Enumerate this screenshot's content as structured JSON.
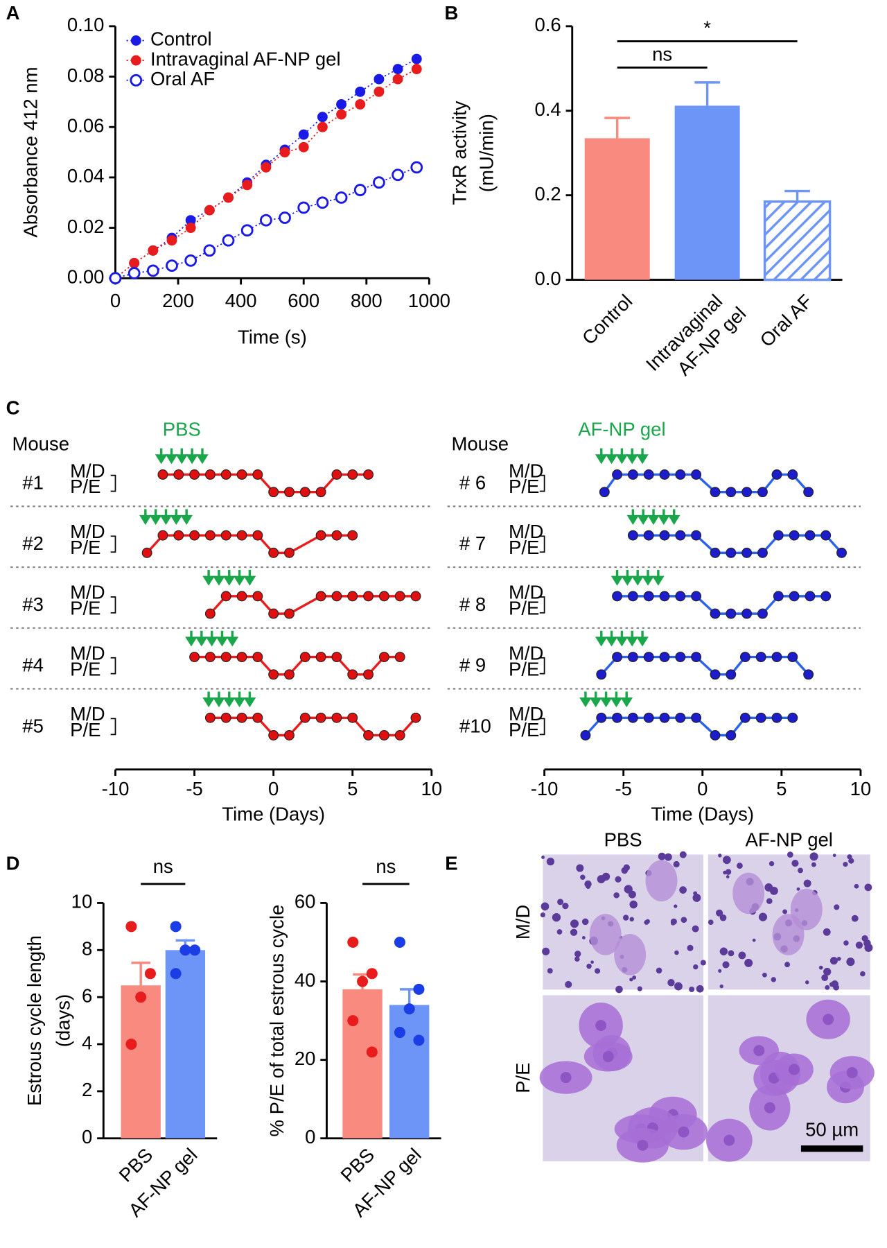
{
  "panel_labels": [
    "A",
    "B",
    "C",
    "D",
    "E"
  ],
  "chart_data": [
    {
      "type": "scatter",
      "x_label": "Time (s)",
      "y_label": "Absorbance 412 nm",
      "x": [
        0,
        60,
        120,
        180,
        240,
        300,
        360,
        420,
        480,
        540,
        600,
        660,
        720,
        780,
        840,
        900,
        960
      ],
      "series": [
        {
          "name": "Control",
          "color": "#1a1ae6",
          "marker": "filled",
          "values": [
            0,
            0.006,
            0.011,
            0.016,
            0.023,
            0.027,
            0.032,
            0.038,
            0.045,
            0.051,
            0.057,
            0.064,
            0.069,
            0.074,
            0.079,
            0.083,
            0.087
          ]
        },
        {
          "name": "Intravaginal AF-NP gel",
          "color": "#e81c1c",
          "marker": "filled",
          "values": [
            0,
            0.006,
            0.011,
            0.015,
            0.02,
            0.027,
            0.032,
            0.037,
            0.044,
            0.05,
            0.052,
            0.06,
            0.065,
            0.069,
            0.074,
            0.079,
            0.083
          ]
        },
        {
          "name": "Oral AF",
          "color": "#1a1ae6",
          "marker": "open",
          "values": [
            0,
            0.002,
            0.003,
            0.005,
            0.007,
            0.011,
            0.015,
            0.019,
            0.023,
            0.024,
            0.028,
            0.03,
            0.032,
            0.035,
            0.038,
            0.041,
            0.044
          ]
        }
      ],
      "xlim": [
        0,
        1000
      ],
      "xticks": [
        0,
        200,
        400,
        600,
        800,
        1000
      ],
      "ylim": [
        0,
        0.1
      ],
      "yticks": [
        {
          "value": 0,
          "label": "0.00"
        },
        {
          "value": 0.02,
          "label": "0.02"
        },
        {
          "value": 0.04,
          "label": "0.04"
        },
        {
          "value": 0.06,
          "label": "0.06"
        },
        {
          "value": 0.08,
          "label": "0.08"
        },
        {
          "value": 0.1,
          "label": "0.10"
        }
      ],
      "legend": "upper left",
      "line_style": "dotted"
    },
    {
      "type": "bar",
      "y_label": [
        "TrxR activity",
        "(mU/min)"
      ],
      "categories": [
        [
          "Control"
        ],
        [
          "Intravaginal",
          "AF-NP gel"
        ],
        [
          "Oral AF"
        ]
      ],
      "values": [
        0.335,
        0.412,
        0.185
      ],
      "errors": [
        0.048,
        0.055,
        0.025
      ],
      "colors": [
        "#f98a80",
        "#6d95f7",
        "#6d95f7"
      ],
      "hatch": [
        false,
        false,
        true
      ],
      "ylim": [
        0,
        0.6
      ],
      "yticks": [
        {
          "value": 0,
          "label": "0.0"
        },
        {
          "value": 0.2,
          "label": "0.2"
        },
        {
          "value": 0.4,
          "label": "0.4"
        },
        {
          "value": 0.6,
          "label": "0.6"
        }
      ],
      "significance": [
        {
          "label": "ns",
          "span": [
            0,
            1
          ]
        },
        {
          "label": "*",
          "span": [
            0,
            2
          ]
        }
      ]
    },
    {
      "type": "line",
      "row_header": "Mouse",
      "treatment_label": "PBS",
      "treatment_color": "#1aa64b",
      "line_color": "#e81c1c",
      "marker_color": "#e01010",
      "state_ticks": [
        {
          "value": 1,
          "label": "M/D"
        },
        {
          "value": 0,
          "label": "P/E"
        }
      ],
      "rows": [
        {
          "name": "#1",
          "x": [
            -7,
            -6,
            -5,
            -4,
            -3,
            -2,
            -1,
            0,
            1,
            2,
            3,
            4,
            5,
            6
          ],
          "values": [
            1,
            1,
            1,
            1,
            1,
            1,
            1,
            0,
            0,
            0,
            0,
            1,
            1,
            1
          ],
          "treatment": [
            -7.1,
            -6.45,
            -5.8,
            -5.15,
            -4.5
          ]
        },
        {
          "name": "#2",
          "x": [
            -8,
            -7,
            -6,
            -5,
            -4,
            -3,
            -2,
            -1,
            0,
            1,
            3,
            4,
            5
          ],
          "values": [
            0,
            1,
            1,
            1,
            1,
            1,
            1,
            1,
            0,
            0,
            1,
            1,
            1
          ],
          "treatment": [
            -8.1,
            -7.45,
            -6.8,
            -6.15,
            -5.5
          ]
        },
        {
          "name": "#3",
          "x": [
            -4,
            -3,
            -2,
            -1,
            0,
            1,
            3,
            4,
            5,
            6,
            7,
            8,
            9
          ],
          "values": [
            0,
            1,
            1,
            1,
            0,
            0,
            1,
            1,
            1,
            1,
            1,
            1,
            1
          ],
          "treatment": [
            -4.1,
            -3.45,
            -2.8,
            -2.15,
            -1.5
          ]
        },
        {
          "name": "#4",
          "x": [
            -5,
            -4,
            -3,
            -2,
            -1,
            0,
            1,
            2,
            3,
            4,
            5,
            6,
            7,
            8
          ],
          "values": [
            1,
            1,
            1,
            1,
            1,
            0,
            0,
            1,
            1,
            1,
            0,
            0,
            1,
            1
          ],
          "treatment": [
            -5.2,
            -4.55,
            -3.9,
            -3.25,
            -2.6
          ]
        },
        {
          "name": "#5",
          "x": [
            -4,
            -3,
            -2,
            -1,
            0,
            1,
            2,
            3,
            4,
            5,
            6,
            7,
            8,
            9
          ],
          "values": [
            1,
            1,
            1,
            1,
            0,
            0,
            1,
            1,
            1,
            1,
            0,
            0,
            0,
            1
          ],
          "treatment": [
            -4.1,
            -3.45,
            -2.8,
            -2.15,
            -1.5
          ]
        }
      ],
      "xlim": [
        -10,
        10
      ],
      "xticks": [
        -10,
        -5,
        0,
        5,
        10
      ],
      "x_label": "Time (Days)"
    },
    {
      "type": "line",
      "row_header": "Mouse",
      "treatment_label": "AF-NP gel",
      "treatment_color": "#1aa64b",
      "line_color": "#2c62e8",
      "marker_color": "#1c1ccc",
      "state_ticks": [
        {
          "value": 1,
          "label": "M/D"
        },
        {
          "value": 0,
          "label": "P/E"
        }
      ],
      "rows": [
        {
          "name": "# 6",
          "x": [
            -6.2,
            -5.4,
            -4.4,
            -3.4,
            -2.4,
            -1.4,
            -0.4,
            0.8,
            1.8,
            2.8,
            3.8,
            4.7,
            5.7,
            6.7
          ],
          "values": [
            0,
            1,
            1,
            1,
            1,
            1,
            1,
            0,
            0,
            0,
            0,
            1,
            1,
            0
          ],
          "treatment": [
            -6.4,
            -5.75,
            -5.1,
            -4.45,
            -3.8
          ]
        },
        {
          "name": "# 7",
          "x": [
            -4.4,
            -3.4,
            -2.4,
            -1.4,
            -0.4,
            0.8,
            1.8,
            2.8,
            3.8,
            4.8,
            5.8,
            6.8,
            7.8,
            8.8
          ],
          "values": [
            1,
            1,
            1,
            1,
            1,
            0,
            0,
            0,
            0,
            1,
            1,
            1,
            1,
            0
          ],
          "treatment": [
            -4.4,
            -3.75,
            -3.1,
            -2.45,
            -1.8
          ]
        },
        {
          "name": "# 8",
          "x": [
            -5.4,
            -4.4,
            -3.4,
            -2.4,
            -1.4,
            -0.4,
            0.8,
            1.8,
            2.8,
            3.8,
            4.8,
            5.8,
            6.8,
            7.8
          ],
          "values": [
            1,
            1,
            1,
            1,
            1,
            1,
            0,
            0,
            0,
            0,
            1,
            1,
            1,
            1
          ],
          "treatment": [
            -5.4,
            -4.75,
            -4.1,
            -3.45,
            -2.8
          ]
        },
        {
          "name": "# 9",
          "x": [
            -6.4,
            -5.4,
            -4.4,
            -3.4,
            -2.4,
            -1.4,
            -0.4,
            0.8,
            1.8,
            2.7,
            3.7,
            4.7,
            5.7,
            6.7
          ],
          "values": [
            0,
            1,
            1,
            1,
            1,
            1,
            1,
            0,
            0,
            1,
            1,
            1,
            1,
            0
          ],
          "treatment": [
            -6.4,
            -5.75,
            -5.1,
            -4.45,
            -3.8
          ]
        },
        {
          "name": "#10",
          "x": [
            -7.4,
            -6.4,
            -5.4,
            -4.4,
            -3.4,
            -2.4,
            -1.4,
            -0.4,
            0.8,
            1.8,
            2.7,
            3.7,
            4.7,
            5.7
          ],
          "values": [
            0,
            1,
            1,
            1,
            1,
            1,
            1,
            1,
            0,
            0,
            1,
            1,
            1,
            1
          ],
          "treatment": [
            -7.4,
            -6.75,
            -6.1,
            -5.45,
            -4.8
          ]
        }
      ],
      "xlim": [
        -10,
        10
      ],
      "xticks": [
        -10,
        -5,
        0,
        5,
        10
      ],
      "x_label": "Time (Days)"
    },
    {
      "type": "bar-dot",
      "y_label": [
        "Estrous cycle length",
        "(days)"
      ],
      "categories": [
        "PBS",
        "AF-NP gel"
      ],
      "values": [
        6.5,
        8
      ],
      "errors": [
        0.96,
        0.41
      ],
      "points": [
        [
          9,
          7,
          6,
          4
        ],
        [
          9,
          8,
          8,
          7
        ]
      ],
      "colors": [
        "#f98a80",
        "#6d95f7"
      ],
      "point_colors": [
        "#e81c1c",
        "#1a3de6"
      ],
      "ylim": [
        0,
        10
      ],
      "yticks": [
        0,
        2,
        4,
        6,
        8,
        10
      ],
      "significance": [
        {
          "label": "ns",
          "span": [
            0,
            1
          ]
        }
      ]
    },
    {
      "type": "bar-dot",
      "y_label": [
        "% P/E of total estrous cycle"
      ],
      "categories": [
        "PBS",
        "AF-NP gel"
      ],
      "values": [
        38,
        34
      ],
      "errors": [
        3.8,
        4
      ],
      "points": [
        [
          50,
          42,
          40,
          30,
          22
        ],
        [
          50,
          38,
          33,
          27,
          25
        ]
      ],
      "colors": [
        "#f98a80",
        "#6d95f7"
      ],
      "point_colors": [
        "#e81c1c",
        "#1a3de6"
      ],
      "ylim": [
        0,
        60
      ],
      "yticks": [
        0,
        20,
        40,
        60
      ],
      "significance": [
        {
          "label": "ns",
          "span": [
            0,
            1
          ]
        }
      ]
    }
  ],
  "micrographs": {
    "columns": [
      "PBS",
      "AF-NP gel"
    ],
    "rows": [
      "M/D",
      "P/E"
    ],
    "scale_bar": "50 µm"
  }
}
